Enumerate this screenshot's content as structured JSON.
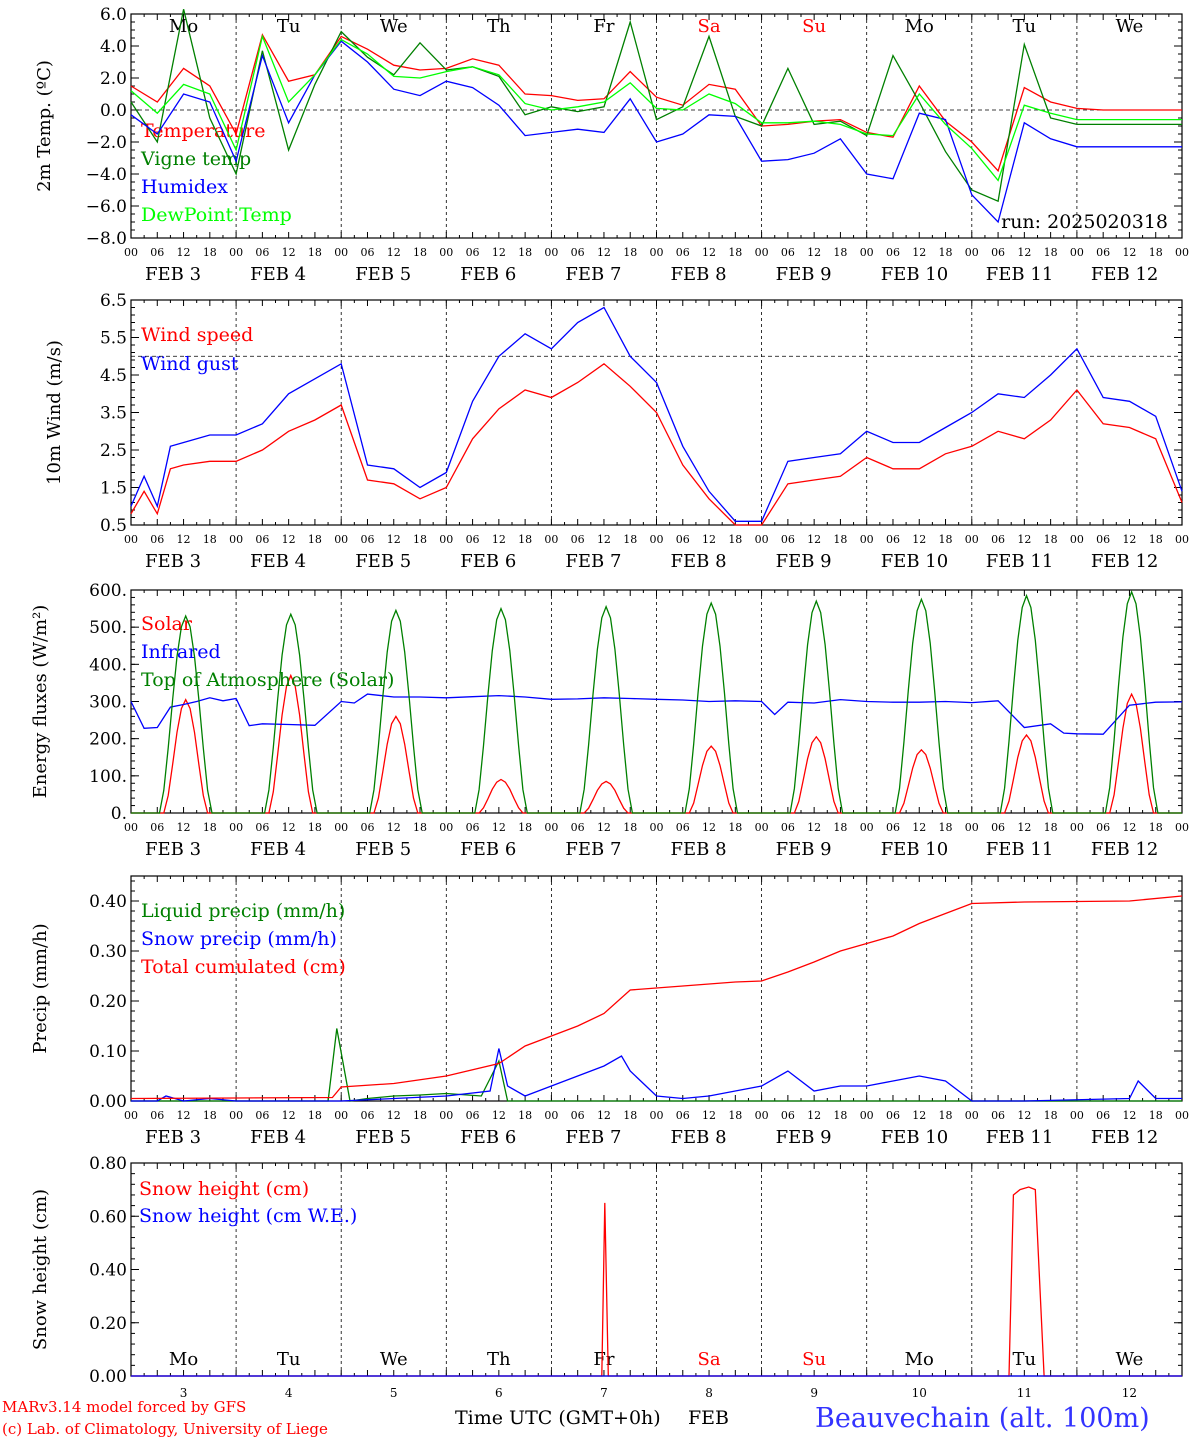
{
  "colors": {
    "temp": "#ff0000",
    "vigne": "#008000",
    "humidex": "#0000ff",
    "dew": "#00ff00",
    "wind": "#ff0000",
    "gust": "#0000ff",
    "solar": "#ff0000",
    "ir": "#0000ff",
    "toa": "#008000",
    "liquid": "#008000",
    "snowp": "#0000ff",
    "cum": "#ff0000",
    "snowh": "#ff0000",
    "snowwe": "#0000ff",
    "station": "#3333ff",
    "credit": "#ff0000"
  },
  "hour_labels": [
    "00",
    "06",
    "12",
    "18"
  ],
  "days": [
    {
      "date": "FEB  3",
      "wd": "Mo",
      "num": "3",
      "red": false
    },
    {
      "date": "FEB  4",
      "wd": "Tu",
      "num": "4",
      "red": false
    },
    {
      "date": "FEB  5",
      "wd": "We",
      "num": "5",
      "red": false
    },
    {
      "date": "FEB  6",
      "wd": "Th",
      "num": "6",
      "red": false
    },
    {
      "date": "FEB  7",
      "wd": "Fr",
      "num": "7",
      "red": false
    },
    {
      "date": "FEB  8",
      "wd": "Sa",
      "num": "8",
      "red": true
    },
    {
      "date": "FEB  9",
      "wd": "Su",
      "num": "9",
      "red": true
    },
    {
      "date": "FEB 10",
      "wd": "Mo",
      "num": "10",
      "red": false
    },
    {
      "date": "FEB 11",
      "wd": "Tu",
      "num": "11",
      "red": false
    },
    {
      "date": "FEB 12",
      "wd": "We",
      "num": "12",
      "red": false
    }
  ],
  "footer": {
    "credit1": "MARv3.14 model forced by GFS",
    "credit2": "(c) Lab. of Climatology, University of Liege",
    "xlabel": "Time UTC (GMT+0h)",
    "month": "FEB",
    "station": "Beauvechain (alt. 100m)"
  },
  "chart_data": [
    {
      "type": "line",
      "id": "temp",
      "ylabel": "2m Temp. (ºC)",
      "ylim": [
        -8,
        6
      ],
      "ytick_labels": [
        "6.0",
        "4.0",
        "2.0",
        "0.0",
        "−2.0",
        "−4.0",
        "−6.0",
        "−8.0"
      ],
      "ytick_values": [
        6,
        4,
        2,
        0,
        -2,
        -4,
        -6,
        -8
      ],
      "ref_line": 0,
      "annotation": "run: 2025020318",
      "x_hours": [
        0,
        6,
        12,
        18,
        24,
        30,
        36,
        42,
        48,
        54,
        60,
        66,
        72,
        78,
        84,
        90,
        96,
        102,
        108,
        114,
        120,
        126,
        132,
        138,
        144,
        150,
        156,
        162,
        168,
        174,
        180,
        186,
        192,
        198,
        204,
        210,
        216,
        222,
        228,
        234,
        240
      ],
      "series": [
        {
          "name": "Temperature",
          "color": "temp",
          "values": [
            1.5,
            0.5,
            2.6,
            1.5,
            -1.5,
            4.7,
            1.8,
            2.2,
            4.6,
            3.8,
            2.8,
            2.5,
            2.6,
            3.2,
            2.8,
            1.0,
            0.9,
            0.6,
            0.7,
            2.4,
            0.8,
            0.3,
            1.6,
            1.3,
            -1.0,
            -0.9,
            -0.7,
            -0.6,
            -1.4,
            -1.7,
            1.5,
            -0.7,
            -2.0,
            -3.8,
            1.4,
            0.5,
            0.1,
            0.0,
            0.0,
            0.0,
            0.0
          ]
        },
        {
          "name": "Vigne temp",
          "color": "vigne",
          "values": [
            0.5,
            -2.0,
            6.3,
            -0.5,
            -4.0,
            3.7,
            -2.5,
            1.6,
            4.9,
            3.3,
            2.2,
            4.2,
            2.5,
            2.7,
            2.1,
            -0.3,
            0.2,
            -0.1,
            0.2,
            5.5,
            -0.6,
            0.2,
            4.6,
            -0.4,
            -1.0,
            2.6,
            -0.9,
            -0.7,
            -1.6,
            3.4,
            0.5,
            -2.6,
            -5.0,
            -5.7,
            4.1,
            -0.5,
            -0.9,
            -0.9,
            -0.9,
            -0.9,
            -0.9
          ]
        },
        {
          "name": "Humidex",
          "color": "humidex",
          "values": [
            -0.3,
            -1.5,
            1.0,
            0.5,
            -3.2,
            3.4,
            -0.8,
            2.2,
            4.3,
            3.0,
            1.3,
            0.9,
            1.8,
            1.4,
            0.3,
            -1.6,
            -1.4,
            -1.2,
            -1.4,
            0.7,
            -2.0,
            -1.5,
            -0.3,
            -0.4,
            -3.2,
            -3.1,
            -2.7,
            -1.8,
            -4.0,
            -4.3,
            -0.2,
            -0.6,
            -5.3,
            -7.0,
            -0.8,
            -1.8,
            -2.3,
            -2.3,
            -2.3,
            -2.3,
            -2.3
          ]
        },
        {
          "name": "DewPoint Temp",
          "color": "dew",
          "values": [
            1.2,
            -0.2,
            1.6,
            1.0,
            -2.5,
            4.6,
            0.5,
            2.2,
            4.4,
            3.5,
            2.1,
            2.0,
            2.4,
            2.7,
            2.2,
            0.4,
            0.0,
            0.2,
            0.5,
            1.7,
            0.1,
            0.0,
            1.0,
            0.4,
            -0.8,
            -0.8,
            -0.7,
            -0.9,
            -1.5,
            -1.6,
            1.0,
            -0.9,
            -2.4,
            -4.4,
            0.3,
            -0.2,
            -0.6,
            -0.6,
            -0.6,
            -0.6,
            -0.6
          ]
        }
      ]
    },
    {
      "type": "line",
      "id": "wind",
      "ylabel": "10m Wind (m/s)",
      "ylim": [
        0.5,
        6.5
      ],
      "ytick_labels": [
        "6.5",
        "5.5",
        "4.5",
        "3.5",
        "2.5",
        "1.5",
        "0.5"
      ],
      "ytick_values": [
        6.5,
        5.5,
        4.5,
        3.5,
        2.5,
        1.5,
        0.5
      ],
      "ref_line": 5.0,
      "x_hours": [
        0,
        3,
        6,
        9,
        12,
        18,
        24,
        30,
        36,
        42,
        48,
        54,
        60,
        66,
        72,
        78,
        84,
        90,
        96,
        102,
        108,
        114,
        120,
        126,
        132,
        138,
        144,
        150,
        156,
        162,
        168,
        174,
        180,
        186,
        192,
        198,
        204,
        210,
        216,
        222,
        228,
        234,
        240
      ],
      "series": [
        {
          "name": "Wind speed",
          "color": "wind",
          "values": [
            0.8,
            1.4,
            0.8,
            2.0,
            2.1,
            2.2,
            2.2,
            2.5,
            3.0,
            3.3,
            3.7,
            1.7,
            1.6,
            1.2,
            1.5,
            2.8,
            3.6,
            4.1,
            3.9,
            4.3,
            4.8,
            4.2,
            3.5,
            2.1,
            1.2,
            0.5,
            0.5,
            1.6,
            1.7,
            1.8,
            2.3,
            2.0,
            2.0,
            2.4,
            2.6,
            3.0,
            2.8,
            3.3,
            4.1,
            3.2,
            3.1,
            2.8,
            1.1
          ]
        },
        {
          "name": "Wind gust",
          "color": "gust",
          "values": [
            1.0,
            1.8,
            1.0,
            2.6,
            2.7,
            2.9,
            2.9,
            3.2,
            4.0,
            4.4,
            4.8,
            2.1,
            2.0,
            1.5,
            1.9,
            3.8,
            5.0,
            5.6,
            5.2,
            5.9,
            6.3,
            5.0,
            4.3,
            2.6,
            1.4,
            0.6,
            0.6,
            2.2,
            2.3,
            2.4,
            3.0,
            2.7,
            2.7,
            3.1,
            3.5,
            4.0,
            3.9,
            4.5,
            5.2,
            3.9,
            3.8,
            3.4,
            1.4
          ]
        }
      ]
    },
    {
      "type": "line",
      "id": "energy",
      "ylabel": "Energy fluxes (W/m²)",
      "ylim": [
        0,
        600
      ],
      "ytick_labels": [
        "600.",
        "500.",
        "400.",
        "300.",
        "200.",
        "100.",
        "0."
      ],
      "ytick_values": [
        600,
        500,
        400,
        300,
        200,
        100,
        0
      ],
      "solar_peaks": [
        305,
        370,
        260,
        90,
        85,
        180,
        205,
        170,
        210,
        320
      ],
      "toa_peaks": [
        530,
        535,
        545,
        550,
        555,
        565,
        570,
        575,
        585,
        595
      ],
      "series": [
        {
          "name": "Solar",
          "color": "solar"
        },
        {
          "name": "Infrared",
          "color": "ir",
          "x_hours": [
            0,
            3,
            6,
            9,
            12,
            15,
            18,
            21,
            24,
            27,
            30,
            36,
            42,
            48,
            51,
            54,
            60,
            66,
            72,
            78,
            84,
            90,
            96,
            102,
            108,
            114,
            120,
            126,
            132,
            138,
            144,
            147,
            150,
            156,
            162,
            168,
            174,
            180,
            186,
            192,
            198,
            204,
            210,
            213,
            216,
            222,
            228,
            234,
            240
          ],
          "values": [
            300,
            228,
            230,
            285,
            292,
            300,
            310,
            302,
            308,
            235,
            240,
            238,
            236,
            300,
            296,
            320,
            312,
            312,
            310,
            313,
            316,
            312,
            306,
            307,
            310,
            308,
            306,
            304,
            300,
            302,
            300,
            265,
            298,
            296,
            305,
            300,
            298,
            298,
            300,
            297,
            302,
            230,
            240,
            215,
            213,
            212,
            290,
            298,
            299
          ]
        },
        {
          "name": "Top of Atmosphere (Solar)",
          "color": "toa"
        }
      ]
    },
    {
      "type": "line",
      "id": "precip",
      "ylabel": "Precip (mm/h)",
      "ylim": [
        0,
        0.45
      ],
      "ytick_labels": [
        "0.40",
        "0.30",
        "0.20",
        "0.10",
        "0.00"
      ],
      "ytick_values": [
        0.4,
        0.3,
        0.2,
        0.1,
        0.0
      ],
      "series": [
        {
          "name": "Liquid precip (mm/h)",
          "color": "liquid",
          "x_hours": [
            0,
            40,
            45,
            47,
            50,
            54,
            60,
            66,
            72,
            80,
            84,
            86,
            90,
            240
          ],
          "values": [
            0,
            0,
            0,
            0.145,
            0,
            0.005,
            0.01,
            0.012,
            0.015,
            0.01,
            0.08,
            0,
            0,
            0
          ]
        },
        {
          "name": "Snow precip (mm/h)",
          "color": "snowp",
          "x_hours": [
            0,
            6,
            8,
            12,
            18,
            24,
            48,
            72,
            82,
            84,
            86,
            90,
            96,
            102,
            108,
            112,
            114,
            120,
            126,
            132,
            138,
            144,
            150,
            156,
            162,
            168,
            174,
            180,
            186,
            192,
            198,
            204,
            228,
            230,
            234,
            240
          ],
          "values": [
            0,
            0,
            0.01,
            0,
            0.005,
            0,
            0,
            0.01,
            0.02,
            0.105,
            0.03,
            0.01,
            0.03,
            0.05,
            0.07,
            0.09,
            0.06,
            0.01,
            0.005,
            0.01,
            0.02,
            0.03,
            0.06,
            0.02,
            0.03,
            0.03,
            0.04,
            0.05,
            0.04,
            0.0,
            0.0,
            0.0,
            0.005,
            0.04,
            0.005,
            0.005
          ]
        },
        {
          "name": "Total cumulated (cm)",
          "color": "cum",
          "x_hours": [
            0,
            24,
            46,
            48,
            60,
            72,
            84,
            90,
            96,
            102,
            108,
            114,
            126,
            138,
            144,
            150,
            156,
            162,
            168,
            174,
            180,
            186,
            192,
            204,
            216,
            228,
            240
          ],
          "values": [
            0.005,
            0.006,
            0.007,
            0.028,
            0.035,
            0.05,
            0.075,
            0.11,
            0.13,
            0.15,
            0.175,
            0.222,
            0.23,
            0.238,
            0.24,
            0.258,
            0.278,
            0.3,
            0.315,
            0.33,
            0.355,
            0.375,
            0.395,
            0.398,
            0.399,
            0.4,
            0.41
          ]
        }
      ]
    },
    {
      "type": "line",
      "id": "snow",
      "ylabel": "Snow height (cm)",
      "ylim": [
        0,
        0.8
      ],
      "ytick_labels": [
        "0.80",
        "0.60",
        "0.40",
        "0.20",
        "0.00"
      ],
      "ytick_values": [
        0.8,
        0.6,
        0.4,
        0.2,
        0.0
      ],
      "series": [
        {
          "name": "Snow height (cm)",
          "color": "snowh",
          "x_hours": [
            0,
            107.5,
            108.2,
            109,
            200.5,
            201.5,
            203,
            205,
            206.5,
            208.5,
            240
          ],
          "values": [
            0,
            0,
            0.65,
            0,
            0,
            0.68,
            0.7,
            0.71,
            0.7,
            0,
            0
          ]
        },
        {
          "name": "Snow height (cm W.E.)",
          "color": "snowwe",
          "x_hours": [
            0,
            240
          ],
          "values": [
            0,
            0
          ]
        }
      ]
    }
  ]
}
